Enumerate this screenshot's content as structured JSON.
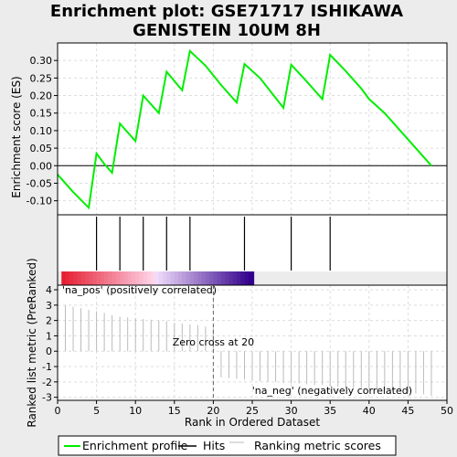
{
  "chart_data": {
    "type": "line",
    "title_line1": "Enrichment plot: GSE71717 ISHIKAWA",
    "title_line2": "GENISTEIN 10UM 8H",
    "xlabel": "Rank in Ordered Dataset",
    "ylabel_top": "Enrichment score (ES)",
    "ylabel_bottom": "Ranked list metric (PreRanked)",
    "xlim": [
      0,
      50
    ],
    "ylim_top": [
      -0.14,
      0.35
    ],
    "ylim_bottom": [
      -3.2,
      4.3
    ],
    "x_ticks": [
      "0",
      "5",
      "10",
      "15",
      "20",
      "25",
      "30",
      "35",
      "40",
      "45",
      "50"
    ],
    "y_ticks_top": [
      "-0.10",
      "-0.05",
      "0.00",
      "0.05",
      "0.10",
      "0.15",
      "0.20",
      "0.25",
      "0.30"
    ],
    "y_ticks_bottom": [
      "-3",
      "-2",
      "-1",
      "0",
      "1",
      "2",
      "3",
      "4"
    ],
    "enrichment_profile": {
      "x": [
        0,
        2,
        4,
        5,
        6,
        7,
        8,
        10,
        11,
        13,
        14,
        16,
        17,
        19,
        21,
        23,
        24,
        26,
        29,
        30,
        32,
        34,
        35,
        37,
        39,
        40,
        42,
        44,
        46,
        48
      ],
      "y": [
        -0.025,
        -0.075,
        -0.12,
        0.035,
        0.005,
        -0.02,
        0.12,
        0.07,
        0.2,
        0.15,
        0.268,
        0.215,
        0.327,
        0.285,
        0.23,
        0.18,
        0.29,
        0.25,
        0.165,
        0.288,
        0.24,
        0.19,
        0.316,
        0.27,
        0.22,
        0.19,
        0.15,
        0.1,
        0.05,
        0.0
      ]
    },
    "hits": [
      5,
      8,
      11,
      14,
      17,
      24,
      30,
      35
    ],
    "ranking_metric": {
      "x": [
        1,
        2,
        3,
        4,
        5,
        6,
        7,
        8,
        9,
        10,
        11,
        12,
        13,
        14,
        15,
        16,
        17,
        18,
        19,
        20,
        21,
        22,
        23,
        24,
        25,
        26,
        27,
        28,
        29,
        30,
        31,
        32,
        33,
        34,
        35,
        36,
        37,
        38,
        39,
        40,
        41,
        42,
        43,
        44,
        45,
        46,
        47,
        48
      ],
      "y": [
        3.0,
        2.9,
        2.8,
        2.7,
        2.6,
        2.5,
        2.35,
        2.25,
        2.2,
        2.15,
        2.1,
        2.05,
        2.0,
        1.95,
        1.85,
        1.8,
        1.75,
        1.7,
        1.6,
        1.55,
        -1.7,
        -1.75,
        -1.8,
        -1.85,
        -1.9,
        -1.95,
        -2.0,
        -2.0,
        -2.05,
        -2.1,
        -2.1,
        -2.15,
        -2.2,
        -2.2,
        -2.25,
        -2.3,
        -2.35,
        -2.4,
        -2.4,
        -2.45,
        -2.5,
        -2.55,
        -2.6,
        -2.65,
        -2.7,
        -2.75,
        -2.8,
        -2.9
      ]
    },
    "annotations": {
      "pos_label": "'na_pos' (positively correlated)",
      "neg_label": "'na_neg' (negatively correlated)",
      "zero_cross": "Zero cross at 20"
    },
    "colors": {
      "profile": "#00ee00",
      "pos_text": "#cc0000",
      "neg_text": "#0000bb",
      "grid": "#dddddd",
      "metric": "#bbbbbb",
      "zero_cross_line": "#666666"
    },
    "legend": {
      "placement": "bottom",
      "items": [
        {
          "label": "Enrichment profile",
          "kind": "profile"
        },
        {
          "label": "Hits",
          "kind": "hits"
        },
        {
          "label": "Ranking metric scores",
          "kind": "metric"
        }
      ]
    },
    "grid": true
  }
}
